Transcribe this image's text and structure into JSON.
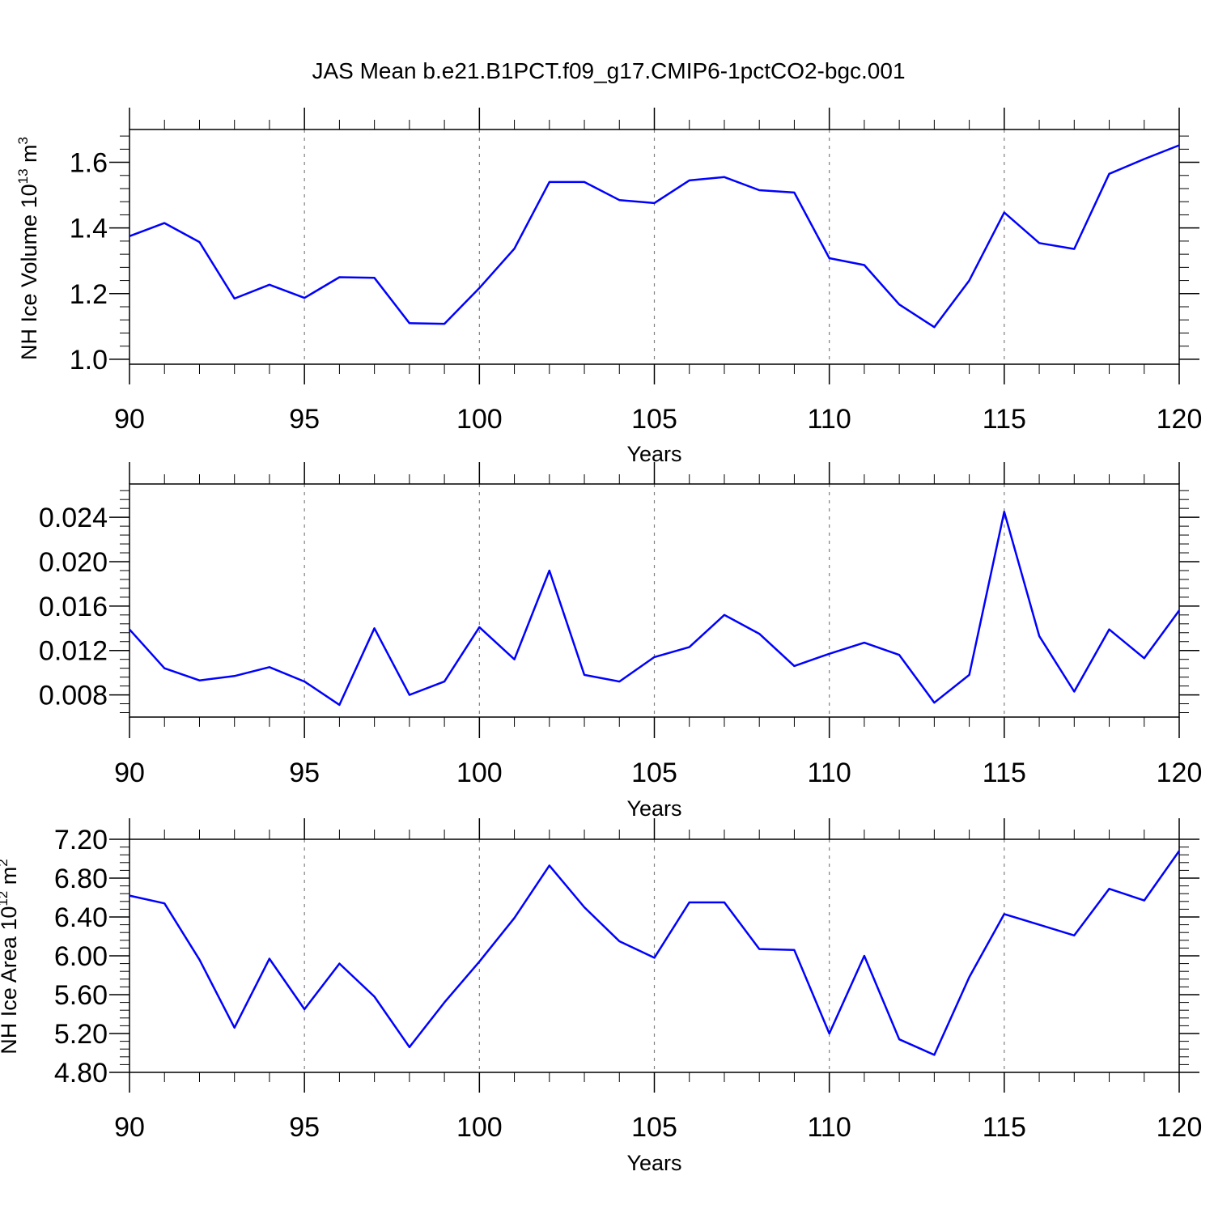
{
  "title": "JAS Mean b.e21.B1PCT.f09_g17.CMIP6-1pctCO2-bgc.001",
  "colors": {
    "line": "#0000ff",
    "axis": "#000000",
    "grid": "#808080",
    "background": "#ffffff"
  },
  "chart_data": [
    {
      "type": "line",
      "xlabel": "Years",
      "ylabel": "NH Ice Volume 10",
      "ylabel_sup1": "13",
      "ylabel_unit": " m",
      "ylabel_sup2": "3",
      "xlim": [
        90,
        120
      ],
      "ylim": [
        0.985,
        1.7
      ],
      "xticks": [
        90,
        95,
        100,
        105,
        110,
        115,
        120
      ],
      "xtick_labels": [
        "90",
        "95",
        "100",
        "105",
        "110",
        "115",
        "120"
      ],
      "yticks": [
        1.0,
        1.2,
        1.4,
        1.6
      ],
      "ytick_labels": [
        "1.0",
        "1.2",
        "1.4",
        "1.6"
      ],
      "grid": "vertical dashed at major x ticks",
      "x": [
        90,
        91,
        92,
        93,
        94,
        95,
        96,
        97,
        98,
        99,
        100,
        101,
        102,
        103,
        104,
        105,
        106,
        107,
        108,
        109,
        110,
        111,
        112,
        113,
        114,
        115,
        116,
        117,
        118,
        119,
        120
      ],
      "y": [
        1.375,
        1.415,
        1.357,
        1.185,
        1.227,
        1.187,
        1.25,
        1.248,
        1.11,
        1.108,
        1.217,
        1.337,
        1.54,
        1.54,
        1.485,
        1.476,
        1.545,
        1.555,
        1.515,
        1.508,
        1.308,
        1.287,
        1.167,
        1.098,
        1.24,
        1.447,
        1.354,
        1.336,
        1.565,
        1.61,
        1.652
      ]
    },
    {
      "type": "line",
      "xlabel": "Years",
      "ylabel": "",
      "xlim": [
        90,
        120
      ],
      "ylim": [
        0.006,
        0.027
      ],
      "xticks": [
        90,
        95,
        100,
        105,
        110,
        115,
        120
      ],
      "xtick_labels": [
        "90",
        "95",
        "100",
        "105",
        "110",
        "115",
        "120"
      ],
      "yticks": [
        0.008,
        0.012,
        0.016,
        0.02,
        0.024
      ],
      "ytick_labels": [
        "0.008",
        "0.012",
        "0.016",
        "0.020",
        "0.024"
      ],
      "grid": "vertical dashed at major x ticks",
      "x": [
        90,
        91,
        92,
        93,
        94,
        95,
        96,
        97,
        98,
        99,
        100,
        101,
        102,
        103,
        104,
        105,
        106,
        107,
        108,
        109,
        110,
        111,
        112,
        113,
        114,
        115,
        116,
        117,
        118,
        119,
        120
      ],
      "y": [
        0.0139,
        0.0104,
        0.0093,
        0.0097,
        0.0105,
        0.0092,
        0.0071,
        0.014,
        0.008,
        0.0092,
        0.0141,
        0.0112,
        0.0192,
        0.0098,
        0.0092,
        0.0114,
        0.0123,
        0.0152,
        0.0135,
        0.0106,
        0.0117,
        0.0127,
        0.0116,
        0.0073,
        0.0098,
        0.0245,
        0.0133,
        0.0083,
        0.0139,
        0.0113,
        0.0156
      ]
    },
    {
      "type": "line",
      "xlabel": "Years",
      "ylabel": "NH Ice Area 10",
      "ylabel_sup1": "12",
      "ylabel_unit": " m",
      "ylabel_sup2": "2",
      "xlim": [
        90,
        120
      ],
      "ylim": [
        4.8,
        7.2
      ],
      "xticks": [
        90,
        95,
        100,
        105,
        110,
        115,
        120
      ],
      "xtick_labels": [
        "90",
        "95",
        "100",
        "105",
        "110",
        "115",
        "120"
      ],
      "yticks": [
        4.8,
        5.2,
        5.6,
        6.0,
        6.4,
        6.8,
        7.2
      ],
      "ytick_labels": [
        "4.80",
        "5.20",
        "5.60",
        "6.00",
        "6.40",
        "6.80",
        "7.20"
      ],
      "grid": "vertical dashed at major x ticks",
      "x": [
        90,
        91,
        92,
        93,
        94,
        95,
        96,
        97,
        98,
        99,
        100,
        101,
        102,
        103,
        104,
        105,
        106,
        107,
        108,
        109,
        110,
        111,
        112,
        113,
        114,
        115,
        116,
        117,
        118,
        119,
        120
      ],
      "y": [
        6.62,
        6.54,
        5.96,
        5.26,
        5.97,
        5.45,
        5.92,
        5.58,
        5.06,
        5.52,
        5.94,
        6.39,
        6.93,
        6.5,
        6.15,
        5.98,
        6.55,
        6.55,
        6.07,
        6.06,
        5.2,
        6.0,
        5.14,
        4.98,
        5.78,
        6.43,
        6.32,
        6.21,
        6.69,
        6.57,
        7.08
      ]
    }
  ]
}
